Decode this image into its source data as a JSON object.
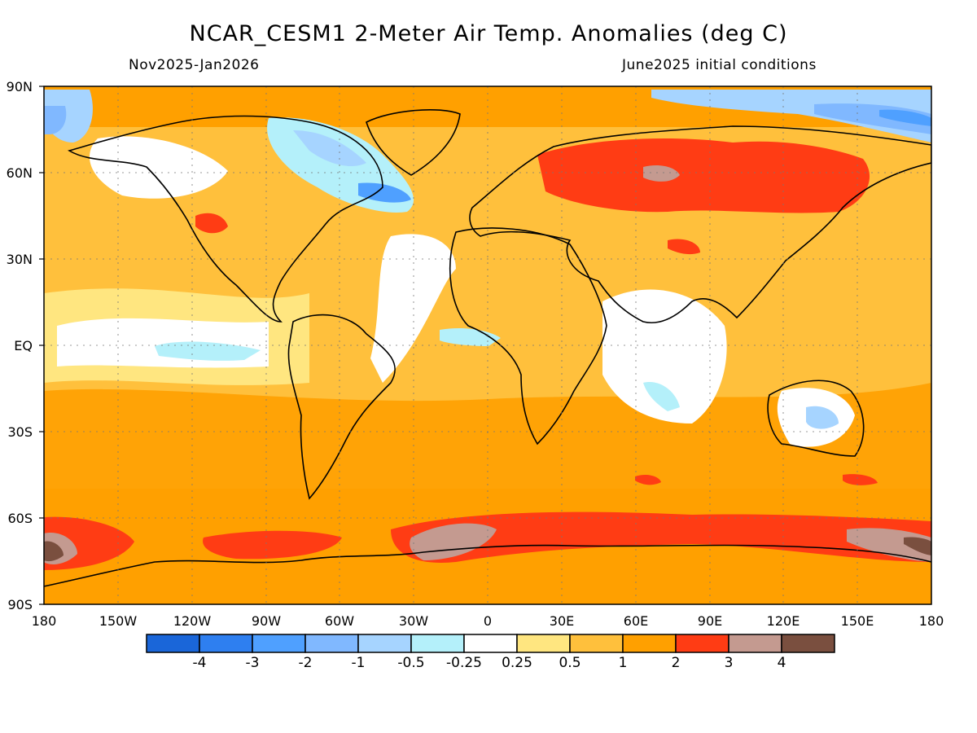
{
  "header": {
    "title": "NCAR_CESM1 2-Meter Air Temp. Anomalies (deg C)",
    "period": "Nov2025-Jan2026",
    "init": "June2025 initial conditions"
  },
  "map": {
    "lat_labels": [
      "90N",
      "60N",
      "30N",
      "EQ",
      "30S",
      "60S",
      "90S"
    ],
    "lon_labels": [
      "180",
      "150W",
      "120W",
      "90W",
      "60W",
      "30W",
      "0",
      "30E",
      "60E",
      "90E",
      "120E",
      "150E",
      "180"
    ]
  },
  "colorbar": {
    "colors": [
      "#1a66d9",
      "#2e7ff0",
      "#4fa0ff",
      "#80b8ff",
      "#a6d4ff",
      "#b4f0fa",
      "#ffffff",
      "#ffe680",
      "#ffc03c",
      "#ffa000",
      "#ff3c14",
      "#c49a90",
      "#7a4f3f"
    ],
    "labels": [
      "-4",
      "-3",
      "-2",
      "-1",
      "-0.5",
      "-0.25",
      "0.25",
      "0.5",
      "1",
      "2",
      "3",
      "4"
    ]
  }
}
